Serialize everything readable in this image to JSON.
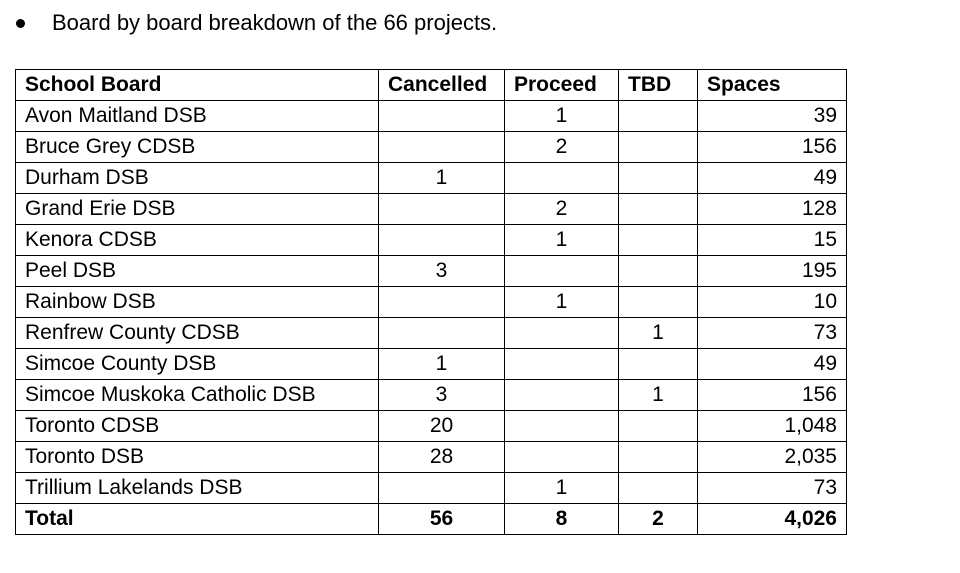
{
  "intro": {
    "bullet_text": "Board by board breakdown of the 66 projects."
  },
  "table": {
    "headers": {
      "board": "School Board",
      "cancelled": "Cancelled",
      "proceed": "Proceed",
      "tbd": "TBD",
      "spaces": "Spaces"
    },
    "rows": [
      {
        "board": "Avon Maitland DSB",
        "cancelled": "",
        "proceed": "1",
        "tbd": "",
        "spaces": "39"
      },
      {
        "board": "Bruce Grey CDSB",
        "cancelled": "",
        "proceed": "2",
        "tbd": "",
        "spaces": "156"
      },
      {
        "board": "Durham DSB",
        "cancelled": "1",
        "proceed": "",
        "tbd": "",
        "spaces": "49"
      },
      {
        "board": "Grand Erie DSB",
        "cancelled": "",
        "proceed": "2",
        "tbd": "",
        "spaces": "128"
      },
      {
        "board": "Kenora CDSB",
        "cancelled": "",
        "proceed": "1",
        "tbd": "",
        "spaces": "15"
      },
      {
        "board": "Peel DSB",
        "cancelled": "3",
        "proceed": "",
        "tbd": "",
        "spaces": "195"
      },
      {
        "board": "Rainbow DSB",
        "cancelled": "",
        "proceed": "1",
        "tbd": "",
        "spaces": "10"
      },
      {
        "board": "Renfrew County CDSB",
        "cancelled": "",
        "proceed": "",
        "tbd": "1",
        "spaces": "73"
      },
      {
        "board": "Simcoe County DSB",
        "cancelled": "1",
        "proceed": "",
        "tbd": "",
        "spaces": "49"
      },
      {
        "board": "Simcoe Muskoka Catholic DSB",
        "cancelled": "3",
        "proceed": "",
        "tbd": "1",
        "spaces": "156"
      },
      {
        "board": "Toronto CDSB",
        "cancelled": "20",
        "proceed": "",
        "tbd": "",
        "spaces": "1,048"
      },
      {
        "board": "Toronto DSB",
        "cancelled": "28",
        "proceed": "",
        "tbd": "",
        "spaces": "2,035"
      },
      {
        "board": "Trillium Lakelands DSB",
        "cancelled": "",
        "proceed": "1",
        "tbd": "",
        "spaces": "73"
      }
    ],
    "total": {
      "board": "Total",
      "cancelled": "56",
      "proceed": "8",
      "tbd": "2",
      "spaces": "4,026"
    }
  }
}
